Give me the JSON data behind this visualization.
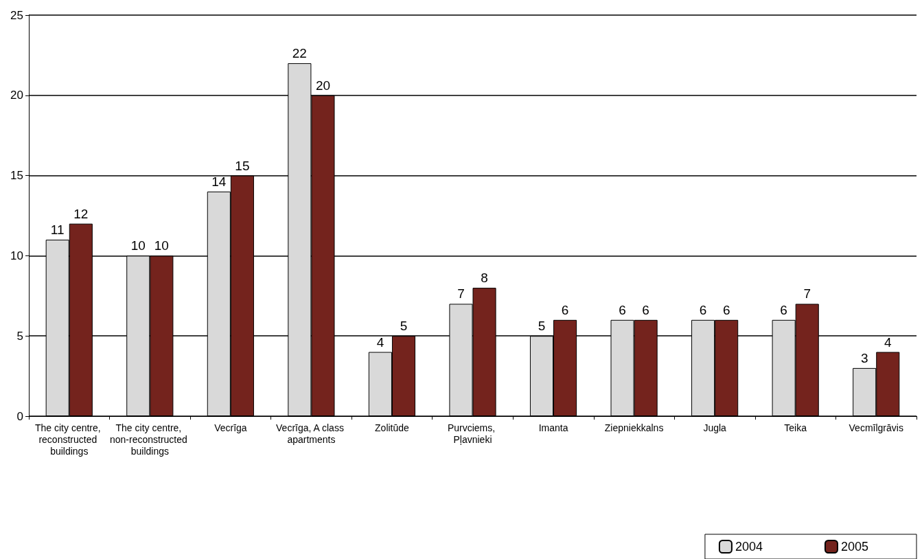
{
  "chart_data": {
    "type": "bar",
    "categories": [
      "The city centre, reconstructed buildings",
      "The city centre, non-reconstructed buildings",
      "Vecrīga",
      "Vecrīga, A class apartments",
      "Zolitūde",
      "Purvciems, Pļavnieki",
      "Imanta",
      "Ziepniekkalns",
      "Jugla",
      "Teika",
      "Vecmīlgrāvis"
    ],
    "series": [
      {
        "name": "2004",
        "color": "#d9d9d9",
        "values": [
          11,
          10,
          14,
          22,
          4,
          7,
          5,
          6,
          6,
          6,
          3
        ]
      },
      {
        "name": "2005",
        "color": "#74231d",
        "values": [
          12,
          10,
          15,
          20,
          5,
          8,
          6,
          6,
          6,
          7,
          4
        ]
      }
    ],
    "ylim": [
      0,
      25
    ],
    "yticks": [
      0,
      5,
      10,
      15,
      20,
      25
    ],
    "grid": "y",
    "legend": "bottom right",
    "data_labels": true
  }
}
